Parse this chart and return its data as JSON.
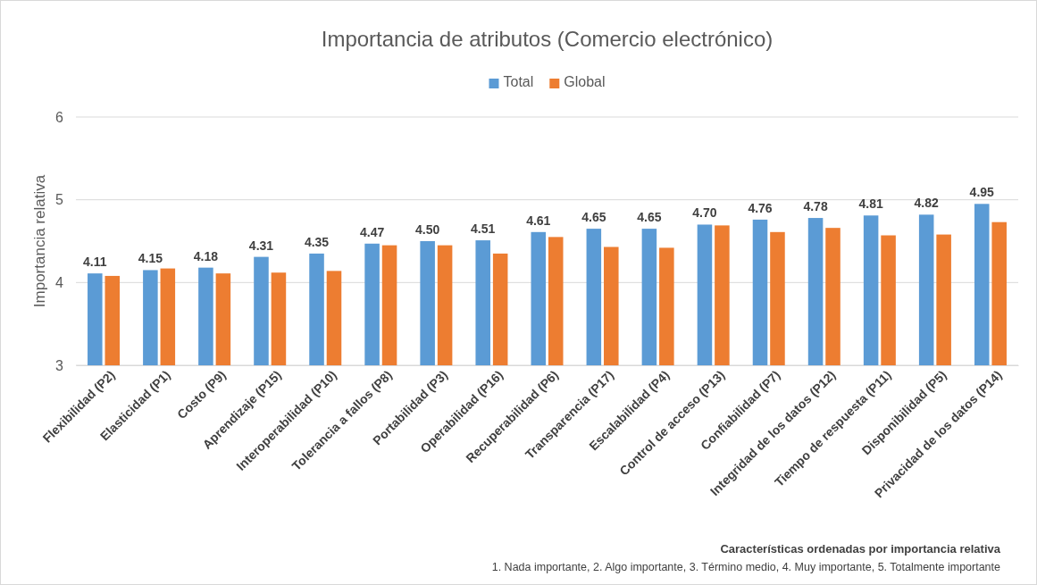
{
  "chart_data": {
    "type": "bar",
    "title": "Importancia de atributos (Comercio electrónico)",
    "ylabel": "Importancia relativa",
    "categories": [
      "Flexibilidad (P2)",
      "Elasticidad (P1)",
      "Costo (P9)",
      "Aprendizaje (P15)",
      "Interoperabilidad (P10)",
      "Tolerancia a fallos (P8)",
      "Portabilidad (P3)",
      "Operabilidad (P16)",
      "Recuperabilidad (P6)",
      "Transparencia (P17)",
      "Escalabilidad (P4)",
      "Control de acceso (P13)",
      "Confiabilidad (P7)",
      "Integridad de los datos  (P12)",
      "Tiempo de respuesta (P11)",
      "Disponibilidad (P5)",
      "Privacidad de los datos (P14)"
    ],
    "series": [
      {
        "name": "Total",
        "color": "#5b9bd5",
        "values": [
          4.11,
          4.15,
          4.18,
          4.31,
          4.35,
          4.47,
          4.5,
          4.51,
          4.61,
          4.65,
          4.65,
          4.7,
          4.76,
          4.78,
          4.81,
          4.82,
          4.95
        ],
        "value_labels": [
          "4.11",
          "4.15",
          "4.18",
          "4.31",
          "4.35",
          "4.47",
          "4.50",
          "4.51",
          "4.61",
          "4.65",
          "4.65",
          "4.70",
          "4.76",
          "4.78",
          "4.81",
          "4.82",
          "4.95"
        ]
      },
      {
        "name": "Global",
        "color": "#ed7d31",
        "values": [
          4.08,
          4.17,
          4.11,
          4.12,
          4.14,
          4.45,
          4.45,
          4.35,
          4.55,
          4.43,
          4.42,
          4.69,
          4.61,
          4.66,
          4.57,
          4.58,
          4.73
        ]
      }
    ],
    "ylim": [
      3,
      6
    ],
    "yticks": [
      3,
      4,
      5,
      6
    ],
    "grid": "y",
    "legend": "top",
    "annotations": [
      "Características ordenadas por importancia relativa",
      "1. Nada importante, 2. Algo importante, 3. Término medio, 4. Muy importante, 5. Totalmente importante"
    ]
  }
}
